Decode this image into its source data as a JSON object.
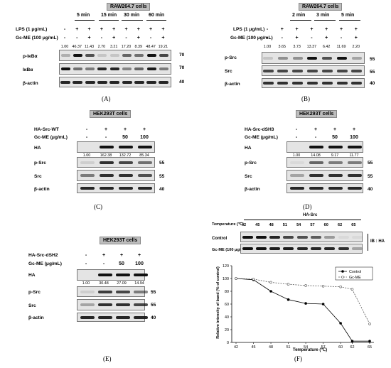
{
  "panel_A": {
    "letter": "(A)",
    "cell_line": "RAW264.7 cells",
    "timepoints": [
      "5 min",
      "15 min",
      "30 min",
      "60 min"
    ],
    "lps_label": "LPS (1 μg/mL)",
    "gc_label": "Gc-ME (100 μg/mL)",
    "lps_signs": [
      "-",
      "+",
      "+",
      "+",
      "+",
      "+",
      "+",
      "+",
      "+"
    ],
    "gc_signs": [
      "-",
      "-",
      "+",
      "-",
      "+",
      "-",
      "+",
      "-",
      "+"
    ],
    "quant": [
      "1.00",
      "46.37",
      "11.43",
      "2.70",
      "3.21",
      "17.20",
      "8.39",
      "48.47",
      "19.21"
    ],
    "rows": [
      "p-IκBα",
      "IκBα",
      "β-actin"
    ],
    "mw": [
      "70",
      "70",
      "40"
    ]
  },
  "panel_B": {
    "letter": "(B)",
    "cell_line": "RAW264.7 cells",
    "timepoints": [
      "2 min",
      "3 min",
      "5 min"
    ],
    "lps_label": "LPS (1 μg/mL)",
    "gc_label": "Gc-ME (100 μg/mL)",
    "lps_signs": [
      "-",
      "+",
      "+",
      "+",
      "+",
      "+",
      "+"
    ],
    "gc_signs": [
      "-",
      "-",
      "+",
      "-",
      "+",
      "-",
      "+"
    ],
    "quant": [
      "1.00",
      "3.65",
      "3.73",
      "13.37",
      "6.42",
      "11.69",
      "2.20"
    ],
    "rows": [
      "p-Src",
      "Src",
      "β-actin"
    ],
    "mw": [
      "55",
      "55",
      "40"
    ]
  },
  "panel_C": {
    "letter": "(C)",
    "cell_line": "HEK293T cells",
    "tf_label": "HA-Src-WT",
    "gc_label": "Gc-ME (μg/mL)",
    "tf_signs": [
      "-",
      "+",
      "+",
      "+"
    ],
    "gc_signs": [
      "-",
      "-",
      "50",
      "100"
    ],
    "quant": [
      "1.00",
      "162.38",
      "132.72",
      "85.34"
    ],
    "rows": [
      "HA",
      "p-Src",
      "Src",
      "β-actin"
    ],
    "mw": [
      "",
      "55",
      "55",
      "40"
    ]
  },
  "panel_D": {
    "letter": "(D)",
    "cell_line": "HEK293T cells",
    "tf_label": "HA-Src-dSH3",
    "gc_label": "Gc-ME (μg/mL)",
    "tf_signs": [
      "-",
      "+",
      "+",
      "+"
    ],
    "gc_signs": [
      "-",
      "-",
      "50",
      "100"
    ],
    "quant": [
      "1.00",
      "14.08",
      "9.17",
      "11.77"
    ],
    "rows": [
      "HA",
      "p-Src",
      "Src",
      "β-actin"
    ],
    "mw": [
      "",
      "55",
      "55",
      "40"
    ]
  },
  "panel_E": {
    "letter": "(E)",
    "cell_line": "HEK293T cells",
    "tf_label": "HA-Src-dSH2",
    "gc_label": "Gc-ME (μg/mL)",
    "tf_signs": [
      "-",
      "+",
      "+",
      "+"
    ],
    "gc_signs": [
      "-",
      "-",
      "50",
      "100"
    ],
    "quant": [
      "1.00",
      "30.48",
      "27.09",
      "14.94"
    ],
    "rows": [
      "HA",
      "p-Src",
      "Src",
      "β-actin"
    ],
    "mw": [
      "",
      "55",
      "55",
      "40"
    ]
  },
  "panel_F": {
    "letter": "(F)",
    "header": "HA-Src",
    "temp_label": "Temperature (℃)",
    "temps": [
      "42",
      "45",
      "48",
      "51",
      "54",
      "57",
      "60",
      "62",
      "65"
    ],
    "rows": [
      "Control",
      "Gc-ME (100 μg/mL)"
    ],
    "ib_label": "IB : HA"
  },
  "chart_data": {
    "type": "line",
    "x": [
      42,
      45,
      48,
      51,
      54,
      57,
      60,
      62,
      65
    ],
    "series": [
      {
        "name": "Control",
        "values": [
          100,
          98,
          80,
          67,
          61,
          60,
          30,
          2,
          2
        ],
        "color": "#000000",
        "marker": "filled-circle"
      },
      {
        "name": "Gc-ME",
        "values": [
          100,
          99,
          94,
          91,
          89,
          88,
          87,
          83,
          29
        ],
        "color": "#555555",
        "marker": "open-circle",
        "dashed": true
      }
    ],
    "xlabel": "Temperature (℃)",
    "ylabel": "Relative intensity of band (% of control)",
    "ylim": [
      0,
      120
    ],
    "yticks": [
      0,
      20,
      40,
      60,
      80,
      100,
      120
    ],
    "legend_position": "top-right",
    "grid": false
  }
}
